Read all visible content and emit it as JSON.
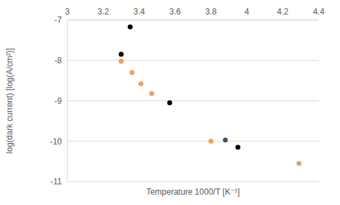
{
  "chart_data": {
    "type": "scatter",
    "x_label": "Temperature 1000/T [K⁻¹]",
    "y_label": "log(dark current) [log(A/cm²)]",
    "xlim": [
      3,
      4.4
    ],
    "xticks": [
      3,
      3.2,
      3.4,
      3.6,
      3.8,
      4,
      4.2,
      4.4
    ],
    "ylim": [
      -11,
      -7
    ],
    "yticks": [
      -11,
      -10,
      -9,
      -8,
      -7
    ],
    "grid": true,
    "marker": "circle",
    "series": [
      {
        "color": "#000000",
        "x": [
          3.3,
          3.35,
          3.57,
          3.95
        ],
        "values": [
          -7.85,
          -7.17,
          -9.05,
          -10.15
        ]
      },
      {
        "color": "#f0a060",
        "x": [
          3.3,
          3.36,
          3.41,
          3.47,
          3.8,
          4.29
        ],
        "values": [
          -8.02,
          -8.3,
          -8.58,
          -8.82,
          -10.0,
          -10.55
        ]
      },
      {
        "color": "#44546a",
        "x": [
          3.88
        ],
        "values": [
          -9.97
        ]
      }
    ]
  }
}
